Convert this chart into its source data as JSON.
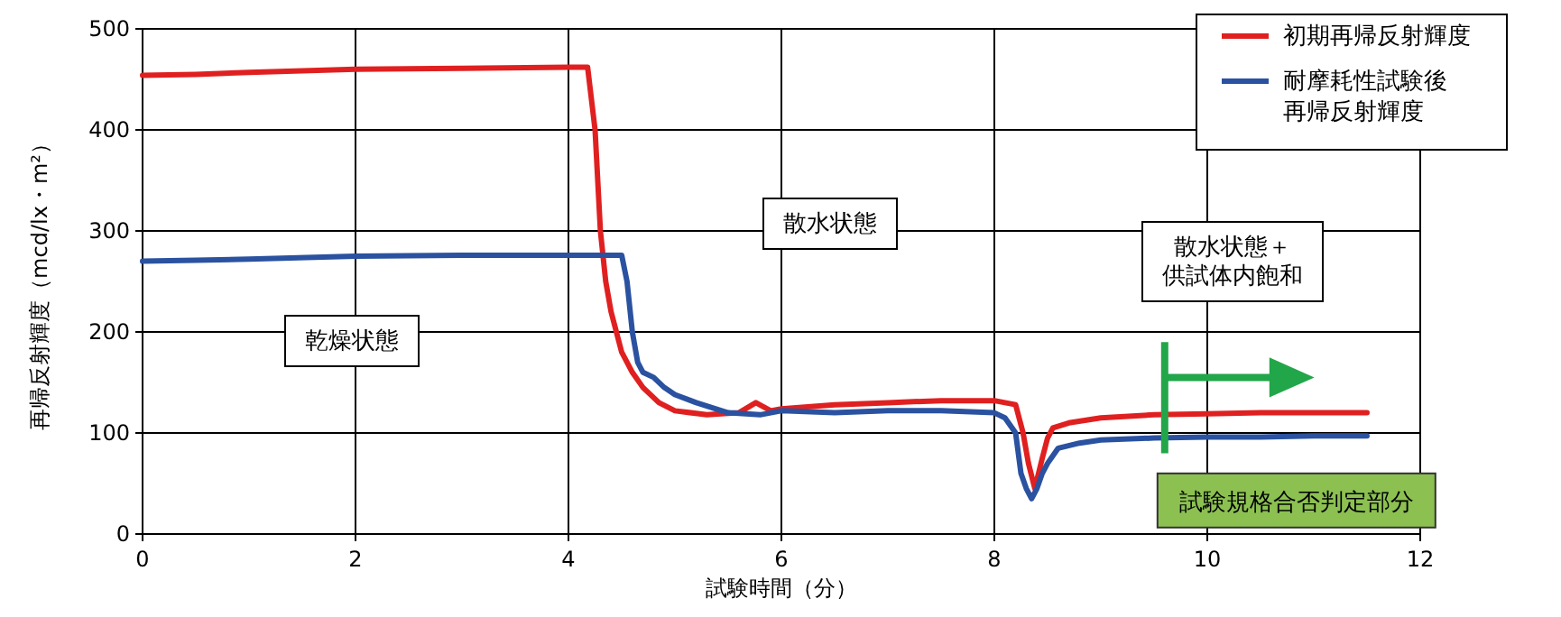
{
  "chart_data": {
    "type": "line",
    "xlabel": "試験時間（分）",
    "ylabel": "再帰反射輝度（mcd/lx・m²）",
    "xlim": [
      0,
      12
    ],
    "xticks": [
      0,
      2,
      4,
      6,
      8,
      10,
      12
    ],
    "ylim": [
      0,
      500
    ],
    "yticks": [
      0,
      100,
      200,
      300,
      400,
      500
    ],
    "grid": true,
    "legend": "top right",
    "marker": "none",
    "line_style": "solid",
    "series": [
      {
        "name": "初期再帰反射輝度",
        "color": "#e02020",
        "x": [
          0,
          0.5,
          1,
          2,
          3,
          4,
          4.18,
          4.25,
          4.3,
          4.35,
          4.4,
          4.5,
          4.6,
          4.7,
          4.85,
          5.0,
          5.3,
          5.6,
          5.76,
          5.9,
          6.0,
          6.5,
          7.0,
          7.5,
          8.0,
          8.2,
          8.27,
          8.32,
          8.38,
          8.45,
          8.5,
          8.55,
          8.7,
          9.0,
          9.5,
          10.0,
          10.5,
          11.0,
          11.5
        ],
        "values": [
          454,
          455,
          457,
          460,
          461,
          462,
          462,
          400,
          300,
          250,
          220,
          180,
          160,
          145,
          130,
          122,
          118,
          120,
          130,
          122,
          124,
          128,
          130,
          132,
          132,
          128,
          100,
          70,
          45,
          75,
          95,
          105,
          110,
          115,
          118,
          119,
          120,
          120,
          120
        ]
      },
      {
        "name": "耐摩耗性試験後再帰反射輝度",
        "color": "#2a52a0",
        "x": [
          0,
          0.5,
          1,
          2,
          3,
          4,
          4.5,
          4.55,
          4.6,
          4.65,
          4.7,
          4.8,
          4.9,
          5.0,
          5.2,
          5.5,
          5.8,
          6.0,
          6.5,
          7.0,
          7.5,
          8.0,
          8.1,
          8.2,
          8.25,
          8.3,
          8.35,
          8.4,
          8.45,
          8.5,
          8.6,
          8.8,
          9.0,
          9.5,
          10.0,
          10.5,
          11.0,
          11.5
        ],
        "values": [
          270,
          271,
          272,
          275,
          276,
          276,
          276,
          250,
          200,
          170,
          160,
          155,
          145,
          138,
          130,
          120,
          118,
          122,
          120,
          122,
          122,
          120,
          115,
          100,
          60,
          45,
          35,
          45,
          60,
          70,
          85,
          90,
          93,
          95,
          96,
          96,
          97,
          97
        ]
      }
    ],
    "annotations": [
      "乾燥状態",
      "散水状態",
      "散水状態＋供試体内飽和"
    ],
    "ref_lines": [
      {
        "axis": "x",
        "value": 9.6,
        "label": "試験規格合否判定部分",
        "color": "#22a64a"
      }
    ]
  }
}
